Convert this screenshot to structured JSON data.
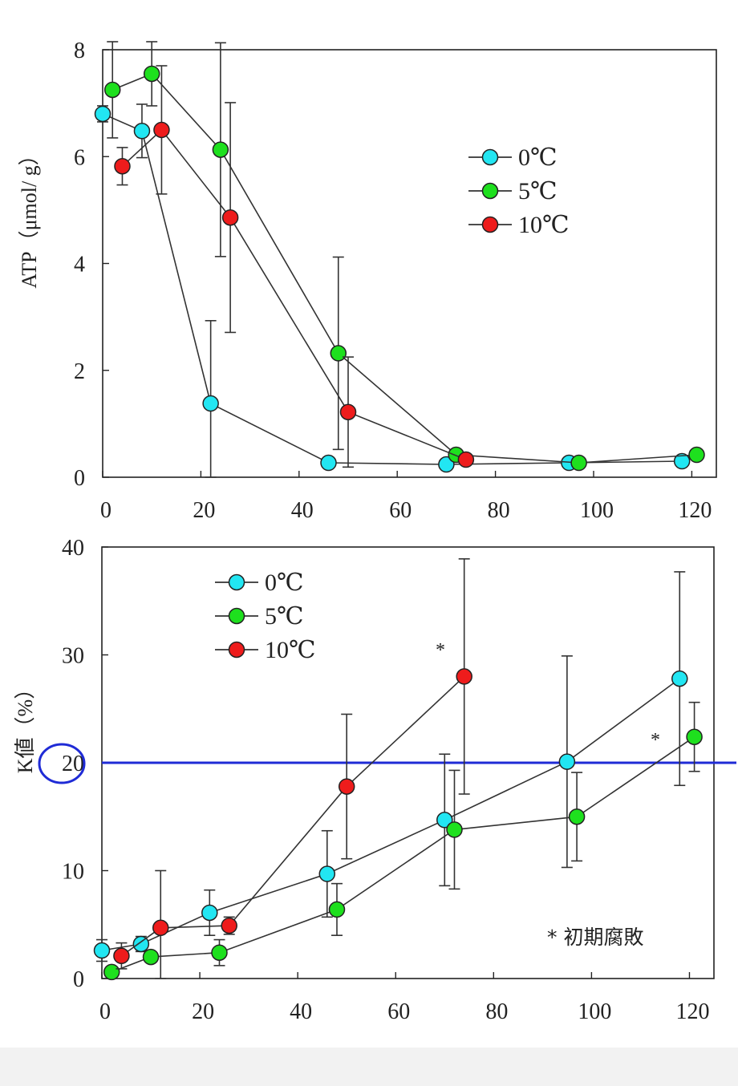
{
  "colors": {
    "series_0C": "#22e6f2",
    "series_5C": "#1ee01e",
    "series_10C": "#ee1c1c",
    "threshold_line": "#1f2bd6",
    "axis": "#222222"
  },
  "chart_data": [
    {
      "id": "atp",
      "type": "line",
      "ylabel": "ATP（μmol/ g）",
      "xlim": [
        0,
        125
      ],
      "ylim": [
        0,
        8
      ],
      "xticks": [
        0,
        20,
        40,
        60,
        80,
        100,
        120
      ],
      "yticks": [
        0,
        2,
        4,
        6,
        8
      ],
      "tick_labels_x": [
        "0",
        "20",
        "40",
        "60",
        "80",
        "100",
        "120"
      ],
      "tick_labels_y": [
        "0",
        "2",
        "4",
        "6",
        "8"
      ],
      "legend_position": "upper-right",
      "legend": [
        "0℃",
        "5℃",
        "10℃"
      ],
      "series": [
        {
          "name": "0℃",
          "color_key": "series_0C",
          "points": [
            {
              "x": 0,
              "y": 6.8,
              "err": 0.15
            },
            {
              "x": 8,
              "y": 6.48,
              "err": 0.5
            },
            {
              "x": 22,
              "y": 1.38,
              "err": 1.55
            },
            {
              "x": 46,
              "y": 0.27,
              "err": 0
            },
            {
              "x": 70,
              "y": 0.24,
              "err": 0
            },
            {
              "x": 95,
              "y": 0.27,
              "err": 0
            },
            {
              "x": 118,
              "y": 0.3,
              "err": 0
            }
          ]
        },
        {
          "name": "5℃",
          "color_key": "series_5C",
          "points": [
            {
              "x": 2,
              "y": 7.25,
              "err": 0.9
            },
            {
              "x": 10,
              "y": 7.55,
              "err": 0.6
            },
            {
              "x": 24,
              "y": 6.13,
              "err": 2.0
            },
            {
              "x": 48,
              "y": 2.32,
              "err": 1.8
            },
            {
              "x": 72,
              "y": 0.42,
              "err": 0
            },
            {
              "x": 97,
              "y": 0.27,
              "err": 0
            },
            {
              "x": 121,
              "y": 0.42,
              "err": 0
            }
          ]
        },
        {
          "name": "10℃",
          "color_key": "series_10C",
          "points": [
            {
              "x": 4,
              "y": 5.82,
              "err": 0.35
            },
            {
              "x": 12,
              "y": 6.5,
              "err": 1.2
            },
            {
              "x": 26,
              "y": 4.86,
              "err": 2.15
            },
            {
              "x": 50,
              "y": 1.22,
              "err": 1.03
            },
            {
              "x": 74,
              "y": 0.33,
              "err": 0
            }
          ]
        }
      ]
    },
    {
      "id": "kvalue",
      "type": "line",
      "ylabel": "K値（%）",
      "xlim": [
        0,
        125
      ],
      "ylim": [
        0,
        40
      ],
      "xticks": [
        0,
        20,
        40,
        60,
        80,
        100,
        120
      ],
      "yticks": [
        0,
        10,
        20,
        30,
        40
      ],
      "tick_labels_x": [
        "0",
        "20",
        "40",
        "60",
        "80",
        "100",
        "120"
      ],
      "tick_labels_y": [
        "0",
        "10",
        "20",
        "30",
        "40"
      ],
      "legend_position": "upper-left",
      "legend": [
        "0℃",
        "5℃",
        "10℃"
      ],
      "reference_line": {
        "y": 20
      },
      "circled_tick": "20",
      "asterisk": "*",
      "annotation": "* 初期腐敗",
      "series": [
        {
          "name": "0℃",
          "color_key": "series_0C",
          "points": [
            {
              "x": 0,
              "y": 2.6,
              "err": 1.0
            },
            {
              "x": 8,
              "y": 3.2,
              "err": 0.7
            },
            {
              "x": 22,
              "y": 6.1,
              "err": 2.1
            },
            {
              "x": 46,
              "y": 9.7,
              "err": 4.0
            },
            {
              "x": 70,
              "y": 14.7,
              "err": 6.1
            },
            {
              "x": 95,
              "y": 20.1,
              "err": 9.8
            },
            {
              "x": 118,
              "y": 27.8,
              "err": 9.9
            }
          ]
        },
        {
          "name": "5℃",
          "color_key": "series_5C",
          "points": [
            {
              "x": 2,
              "y": 0.6,
              "err": 0
            },
            {
              "x": 10,
              "y": 2.0,
              "err": 0
            },
            {
              "x": 24,
              "y": 2.4,
              "err": 1.2
            },
            {
              "x": 48,
              "y": 6.4,
              "err": 2.4
            },
            {
              "x": 72,
              "y": 13.8,
              "err": 5.5
            },
            {
              "x": 97,
              "y": 15.0,
              "err": 4.1
            },
            {
              "x": 121,
              "y": 22.4,
              "err": 3.2
            }
          ]
        },
        {
          "name": "10℃",
          "color_key": "series_10C",
          "points": [
            {
              "x": 4,
              "y": 2.1,
              "err": 1.2
            },
            {
              "x": 12,
              "y": 4.7,
              "err": 5.3
            },
            {
              "x": 26,
              "y": 4.9,
              "err": 0.8
            },
            {
              "x": 50,
              "y": 17.8,
              "err": 6.7
            },
            {
              "x": 74,
              "y": 28.0,
              "err": 10.9
            }
          ]
        }
      ]
    }
  ]
}
